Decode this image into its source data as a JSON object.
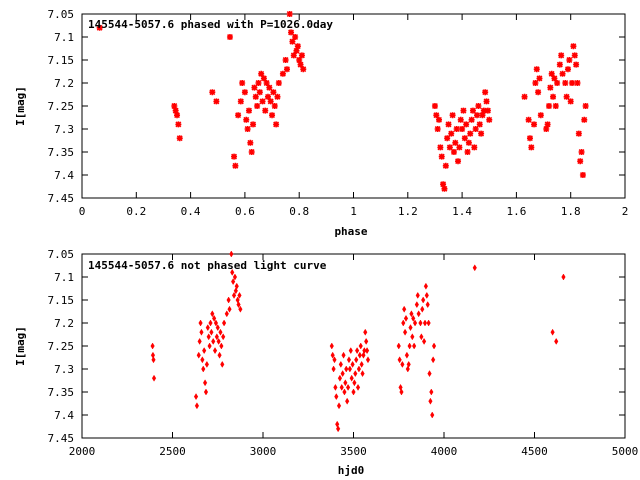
{
  "chart_data": [
    {
      "type": "scatter",
      "title": "145544-5057.6 phased with P=1026.0day",
      "xlabel": "phase",
      "ylabel": "I[mag]",
      "xlim": [
        0,
        2
      ],
      "ylim": [
        7.05,
        7.45
      ],
      "y_inverted": true,
      "xticks": [
        "0",
        "0.2",
        "0.4",
        "0.6",
        "0.8",
        "1",
        "1.2",
        "1.4",
        "1.6",
        "1.8",
        "2"
      ],
      "yticks": [
        "7.05",
        "7.1",
        "7.15",
        "7.2",
        "7.25",
        "7.3",
        "7.35",
        "7.4",
        "7.45"
      ],
      "marker_color": "#ff0000",
      "series": [
        {
          "points": [
            [
              0.065,
              7.08
            ],
            [
              0.34,
              7.25
            ],
            [
              0.345,
              7.26
            ],
            [
              0.35,
              7.27
            ],
            [
              0.355,
              7.29
            ],
            [
              0.36,
              7.32
            ],
            [
              0.48,
              7.22
            ],
            [
              0.495,
              7.24
            ],
            [
              0.545,
              7.1
            ],
            [
              0.56,
              7.36
            ],
            [
              0.565,
              7.38
            ],
            [
              0.575,
              7.27
            ],
            [
              0.585,
              7.24
            ],
            [
              0.59,
              7.2
            ],
            [
              0.6,
              7.22
            ],
            [
              0.605,
              7.28
            ],
            [
              0.61,
              7.3
            ],
            [
              0.615,
              7.26
            ],
            [
              0.62,
              7.33
            ],
            [
              0.625,
              7.35
            ],
            [
              0.63,
              7.29
            ],
            [
              0.635,
              7.21
            ],
            [
              0.64,
              7.23
            ],
            [
              0.645,
              7.25
            ],
            [
              0.65,
              7.2
            ],
            [
              0.655,
              7.22
            ],
            [
              0.66,
              7.18
            ],
            [
              0.665,
              7.24
            ],
            [
              0.67,
              7.19
            ],
            [
              0.675,
              7.26
            ],
            [
              0.68,
              7.2
            ],
            [
              0.685,
              7.23
            ],
            [
              0.69,
              7.21
            ],
            [
              0.695,
              7.24
            ],
            [
              0.7,
              7.27
            ],
            [
              0.705,
              7.22
            ],
            [
              0.71,
              7.25
            ],
            [
              0.715,
              7.29
            ],
            [
              0.72,
              7.23
            ],
            [
              0.725,
              7.2
            ],
            [
              0.74,
              7.18
            ],
            [
              0.75,
              7.15
            ],
            [
              0.755,
              7.17
            ],
            [
              0.765,
              7.05
            ],
            [
              0.77,
              7.09
            ],
            [
              0.775,
              7.11
            ],
            [
              0.78,
              7.14
            ],
            [
              0.785,
              7.1
            ],
            [
              0.79,
              7.13
            ],
            [
              0.795,
              7.12
            ],
            [
              0.8,
              7.15
            ],
            [
              0.805,
              7.16
            ],
            [
              0.81,
              7.14
            ],
            [
              0.815,
              7.17
            ],
            [
              1.3,
              7.25
            ],
            [
              1.305,
              7.27
            ],
            [
              1.31,
              7.3
            ],
            [
              1.315,
              7.28
            ],
            [
              1.32,
              7.34
            ],
            [
              1.325,
              7.36
            ],
            [
              1.33,
              7.42
            ],
            [
              1.335,
              7.43
            ],
            [
              1.34,
              7.38
            ],
            [
              1.345,
              7.32
            ],
            [
              1.35,
              7.29
            ],
            [
              1.355,
              7.34
            ],
            [
              1.36,
              7.31
            ],
            [
              1.365,
              7.27
            ],
            [
              1.37,
              7.35
            ],
            [
              1.375,
              7.33
            ],
            [
              1.38,
              7.3
            ],
            [
              1.385,
              7.37
            ],
            [
              1.39,
              7.34
            ],
            [
              1.395,
              7.28
            ],
            [
              1.4,
              7.3
            ],
            [
              1.405,
              7.26
            ],
            [
              1.41,
              7.32
            ],
            [
              1.415,
              7.29
            ],
            [
              1.42,
              7.35
            ],
            [
              1.425,
              7.33
            ],
            [
              1.43,
              7.31
            ],
            [
              1.435,
              7.28
            ],
            [
              1.44,
              7.26
            ],
            [
              1.445,
              7.34
            ],
            [
              1.45,
              7.3
            ],
            [
              1.455,
              7.27
            ],
            [
              1.46,
              7.25
            ],
            [
              1.465,
              7.29
            ],
            [
              1.47,
              7.31
            ],
            [
              1.475,
              7.27
            ],
            [
              1.48,
              7.26
            ],
            [
              1.485,
              7.22
            ],
            [
              1.49,
              7.24
            ],
            [
              1.495,
              7.26
            ],
            [
              1.5,
              7.28
            ],
            [
              1.63,
              7.23
            ],
            [
              1.645,
              7.28
            ],
            [
              1.65,
              7.32
            ],
            [
              1.655,
              7.34
            ],
            [
              1.665,
              7.29
            ],
            [
              1.67,
              7.2
            ],
            [
              1.675,
              7.17
            ],
            [
              1.68,
              7.22
            ],
            [
              1.685,
              7.19
            ],
            [
              1.69,
              7.27
            ],
            [
              1.71,
              7.3
            ],
            [
              1.715,
              7.29
            ],
            [
              1.72,
              7.25
            ],
            [
              1.725,
              7.21
            ],
            [
              1.73,
              7.18
            ],
            [
              1.735,
              7.23
            ],
            [
              1.74,
              7.19
            ],
            [
              1.745,
              7.25
            ],
            [
              1.75,
              7.2
            ],
            [
              1.76,
              7.16
            ],
            [
              1.765,
              7.14
            ],
            [
              1.77,
              7.18
            ],
            [
              1.78,
              7.2
            ],
            [
              1.785,
              7.23
            ],
            [
              1.79,
              7.17
            ],
            [
              1.795,
              7.15
            ],
            [
              1.8,
              7.24
            ],
            [
              1.805,
              7.2
            ],
            [
              1.81,
              7.12
            ],
            [
              1.815,
              7.14
            ],
            [
              1.82,
              7.16
            ],
            [
              1.825,
              7.2
            ],
            [
              1.83,
              7.31
            ],
            [
              1.835,
              7.37
            ],
            [
              1.84,
              7.35
            ],
            [
              1.845,
              7.4
            ],
            [
              1.85,
              7.28
            ],
            [
              1.855,
              7.25
            ]
          ]
        }
      ]
    },
    {
      "type": "scatter",
      "title": "145544-5057.6 not phased light curve",
      "xlabel": "hjd0",
      "ylabel": "I[mag]",
      "xlim": [
        2000,
        5000
      ],
      "ylim": [
        7.05,
        7.45
      ],
      "y_inverted": true,
      "xticks": [
        "2000",
        "2500",
        "3000",
        "3500",
        "4000",
        "4500",
        "5000"
      ],
      "yticks": [
        "7.05",
        "7.1",
        "7.15",
        "7.2",
        "7.25",
        "7.3",
        "7.35",
        "7.4",
        "7.45"
      ],
      "marker_color": "#ff0000",
      "series": [
        {
          "points": [
            [
              2390,
              7.25
            ],
            [
              2392,
              7.27
            ],
            [
              2395,
              7.28
            ],
            [
              2398,
              7.32
            ],
            [
              2630,
              7.36
            ],
            [
              2635,
              7.38
            ],
            [
              2645,
              7.27
            ],
            [
              2650,
              7.24
            ],
            [
              2655,
              7.2
            ],
            [
              2660,
              7.22
            ],
            [
              2665,
              7.28
            ],
            [
              2670,
              7.3
            ],
            [
              2675,
              7.26
            ],
            [
              2680,
              7.33
            ],
            [
              2685,
              7.35
            ],
            [
              2690,
              7.29
            ],
            [
              2695,
              7.21
            ],
            [
              2700,
              7.23
            ],
            [
              2705,
              7.25
            ],
            [
              2710,
              7.2
            ],
            [
              2715,
              7.22
            ],
            [
              2720,
              7.18
            ],
            [
              2725,
              7.24
            ],
            [
              2730,
              7.19
            ],
            [
              2735,
              7.26
            ],
            [
              2740,
              7.2
            ],
            [
              2745,
              7.23
            ],
            [
              2750,
              7.21
            ],
            [
              2755,
              7.24
            ],
            [
              2760,
              7.27
            ],
            [
              2765,
              7.22
            ],
            [
              2770,
              7.25
            ],
            [
              2775,
              7.29
            ],
            [
              2780,
              7.23
            ],
            [
              2785,
              7.2
            ],
            [
              2800,
              7.18
            ],
            [
              2810,
              7.15
            ],
            [
              2815,
              7.17
            ],
            [
              2825,
              7.05
            ],
            [
              2830,
              7.09
            ],
            [
              2835,
              7.11
            ],
            [
              2840,
              7.14
            ],
            [
              2845,
              7.1
            ],
            [
              2850,
              7.13
            ],
            [
              2855,
              7.12
            ],
            [
              2860,
              7.15
            ],
            [
              2865,
              7.16
            ],
            [
              2870,
              7.14
            ],
            [
              2875,
              7.17
            ],
            [
              3380,
              7.25
            ],
            [
              3385,
              7.27
            ],
            [
              3390,
              7.3
            ],
            [
              3395,
              7.28
            ],
            [
              3400,
              7.34
            ],
            [
              3405,
              7.36
            ],
            [
              3410,
              7.42
            ],
            [
              3415,
              7.43
            ],
            [
              3420,
              7.38
            ],
            [
              3425,
              7.32
            ],
            [
              3430,
              7.29
            ],
            [
              3435,
              7.34
            ],
            [
              3440,
              7.31
            ],
            [
              3445,
              7.27
            ],
            [
              3450,
              7.35
            ],
            [
              3455,
              7.33
            ],
            [
              3460,
              7.3
            ],
            [
              3465,
              7.37
            ],
            [
              3470,
              7.34
            ],
            [
              3475,
              7.28
            ],
            [
              3480,
              7.3
            ],
            [
              3485,
              7.26
            ],
            [
              3490,
              7.32
            ],
            [
              3495,
              7.29
            ],
            [
              3500,
              7.35
            ],
            [
              3505,
              7.33
            ],
            [
              3510,
              7.31
            ],
            [
              3515,
              7.28
            ],
            [
              3520,
              7.26
            ],
            [
              3525,
              7.34
            ],
            [
              3530,
              7.3
            ],
            [
              3535,
              7.27
            ],
            [
              3540,
              7.25
            ],
            [
              3545,
              7.29
            ],
            [
              3550,
              7.31
            ],
            [
              3555,
              7.27
            ],
            [
              3560,
              7.26
            ],
            [
              3565,
              7.22
            ],
            [
              3570,
              7.24
            ],
            [
              3575,
              7.26
            ],
            [
              3580,
              7.28
            ],
            [
              3750,
              7.25
            ],
            [
              3755,
              7.28
            ],
            [
              3760,
              7.34
            ],
            [
              3765,
              7.35
            ],
            [
              3770,
              7.29
            ],
            [
              3775,
              7.2
            ],
            [
              3780,
              7.17
            ],
            [
              3785,
              7.22
            ],
            [
              3790,
              7.19
            ],
            [
              3795,
              7.27
            ],
            [
              3800,
              7.3
            ],
            [
              3805,
              7.29
            ],
            [
              3810,
              7.25
            ],
            [
              3815,
              7.21
            ],
            [
              3820,
              7.18
            ],
            [
              3825,
              7.23
            ],
            [
              3830,
              7.19
            ],
            [
              3835,
              7.25
            ],
            [
              3840,
              7.2
            ],
            [
              3850,
              7.16
            ],
            [
              3855,
              7.14
            ],
            [
              3860,
              7.18
            ],
            [
              3870,
              7.2
            ],
            [
              3875,
              7.23
            ],
            [
              3880,
              7.17
            ],
            [
              3885,
              7.15
            ],
            [
              3890,
              7.24
            ],
            [
              3895,
              7.2
            ],
            [
              3900,
              7.12
            ],
            [
              3905,
              7.14
            ],
            [
              3910,
              7.16
            ],
            [
              3915,
              7.2
            ],
            [
              3920,
              7.31
            ],
            [
              3925,
              7.37
            ],
            [
              3930,
              7.35
            ],
            [
              3935,
              7.4
            ],
            [
              3940,
              7.28
            ],
            [
              3945,
              7.25
            ],
            [
              4170,
              7.08
            ],
            [
              4600,
              7.22
            ],
            [
              4620,
              7.24
            ],
            [
              4660,
              7.1
            ]
          ]
        }
      ]
    }
  ]
}
